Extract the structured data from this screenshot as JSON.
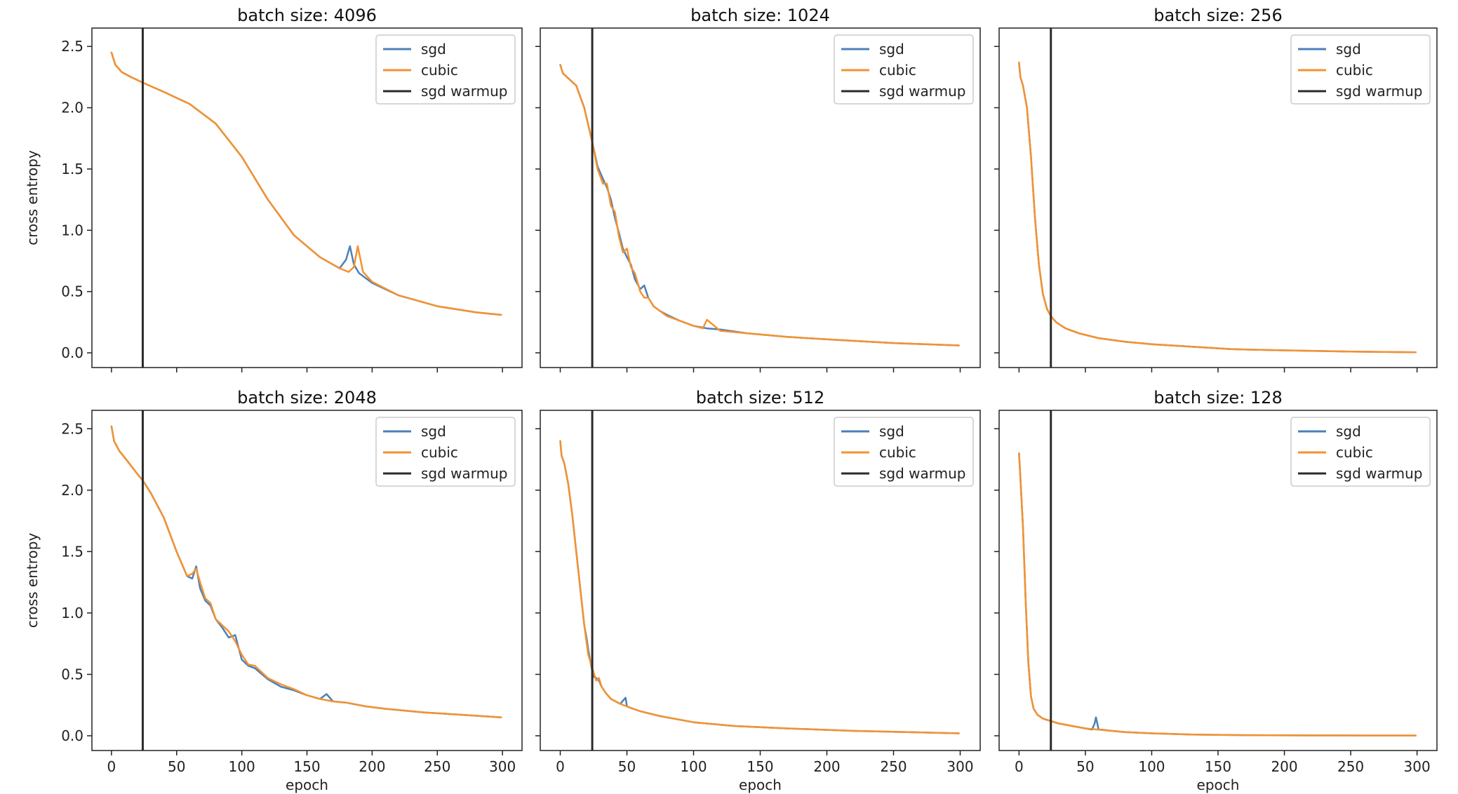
{
  "colors": {
    "sgd": "#4c80b8",
    "cubic": "#f5922f",
    "warmup": "#2b2b2b",
    "frame": "#222222"
  },
  "chart_data": [
    {
      "type": "line",
      "title": "batch size: 4096",
      "xlabel": "",
      "ylabel": "cross entropy",
      "xlim": [
        -15,
        315
      ],
      "ylim": [
        -0.12,
        2.65
      ],
      "xticks": [
        0,
        50,
        100,
        150,
        200,
        250,
        300
      ],
      "xtick_labels_shown": false,
      "yticks": [
        0.0,
        0.5,
        1.0,
        1.5,
        2.0,
        2.5
      ],
      "ytick_labels_shown": true,
      "warmup_epoch": 24,
      "legend": [
        "sgd",
        "cubic",
        "sgd warmup"
      ],
      "legend_position": "top-right",
      "series": [
        {
          "name": "sgd",
          "x": [
            0,
            3,
            8,
            15,
            25,
            40,
            60,
            80,
            100,
            120,
            140,
            160,
            175,
            180,
            183,
            186,
            190,
            200,
            220,
            250,
            280,
            299
          ],
          "y": [
            2.45,
            2.35,
            2.29,
            2.25,
            2.2,
            2.13,
            2.03,
            1.87,
            1.6,
            1.25,
            0.96,
            0.78,
            0.69,
            0.76,
            0.87,
            0.72,
            0.65,
            0.57,
            0.47,
            0.38,
            0.33,
            0.31
          ]
        },
        {
          "name": "cubic",
          "x": [
            0,
            3,
            8,
            15,
            25,
            40,
            60,
            80,
            100,
            120,
            140,
            160,
            175,
            182,
            186,
            189,
            193,
            200,
            220,
            250,
            280,
            299
          ],
          "y": [
            2.45,
            2.35,
            2.29,
            2.25,
            2.2,
            2.13,
            2.03,
            1.87,
            1.6,
            1.25,
            0.96,
            0.78,
            0.69,
            0.66,
            0.7,
            0.87,
            0.66,
            0.58,
            0.47,
            0.38,
            0.33,
            0.31
          ]
        }
      ]
    },
    {
      "type": "line",
      "title": "batch size: 1024",
      "xlabel": "",
      "ylabel": "",
      "xlim": [
        -15,
        315
      ],
      "ylim": [
        -0.12,
        2.65
      ],
      "xticks": [
        0,
        50,
        100,
        150,
        200,
        250,
        300
      ],
      "xtick_labels_shown": false,
      "yticks": [
        0.0,
        0.5,
        1.0,
        1.5,
        2.0,
        2.5
      ],
      "ytick_labels_shown": false,
      "warmup_epoch": 24,
      "legend": [
        "sgd",
        "cubic",
        "sgd warmup"
      ],
      "legend_position": "top-right",
      "series": [
        {
          "name": "sgd",
          "x": [
            0,
            2,
            6,
            12,
            18,
            24,
            28,
            32,
            35,
            38,
            41,
            44,
            47,
            50,
            53,
            56,
            60,
            63,
            66,
            70,
            75,
            80,
            90,
            100,
            110,
            120,
            140,
            170,
            200,
            250,
            299
          ],
          "y": [
            2.35,
            2.28,
            2.24,
            2.18,
            2.0,
            1.72,
            1.52,
            1.42,
            1.35,
            1.25,
            1.1,
            0.98,
            0.85,
            0.78,
            0.72,
            0.6,
            0.52,
            0.55,
            0.45,
            0.38,
            0.34,
            0.31,
            0.26,
            0.22,
            0.2,
            0.19,
            0.16,
            0.13,
            0.11,
            0.08,
            0.06
          ]
        },
        {
          "name": "cubic",
          "x": [
            0,
            2,
            6,
            12,
            18,
            24,
            28,
            32,
            35,
            38,
            41,
            44,
            47,
            50,
            53,
            56,
            60,
            63,
            66,
            70,
            75,
            80,
            90,
            100,
            107,
            110,
            120,
            140,
            170,
            200,
            250,
            299
          ],
          "y": [
            2.35,
            2.28,
            2.24,
            2.18,
            2.0,
            1.72,
            1.5,
            1.38,
            1.38,
            1.2,
            1.15,
            0.95,
            0.82,
            0.85,
            0.7,
            0.65,
            0.5,
            0.45,
            0.45,
            0.38,
            0.34,
            0.3,
            0.26,
            0.22,
            0.2,
            0.27,
            0.18,
            0.16,
            0.13,
            0.11,
            0.08,
            0.06
          ]
        }
      ]
    },
    {
      "type": "line",
      "title": "batch size: 256",
      "xlabel": "",
      "ylabel": "",
      "xlim": [
        -15,
        315
      ],
      "ylim": [
        -0.12,
        2.65
      ],
      "xticks": [
        0,
        50,
        100,
        150,
        200,
        250,
        300
      ],
      "xtick_labels_shown": false,
      "yticks": [
        0.0,
        0.5,
        1.0,
        1.5,
        2.0,
        2.5
      ],
      "ytick_labels_shown": false,
      "warmup_epoch": 24,
      "legend": [
        "sgd",
        "cubic",
        "sgd warmup"
      ],
      "legend_position": "top-right",
      "series": [
        {
          "name": "sgd",
          "x": [
            0,
            1,
            3,
            6,
            9,
            12,
            15,
            18,
            21,
            24,
            28,
            35,
            45,
            60,
            80,
            100,
            130,
            160,
            200,
            250,
            299
          ],
          "y": [
            2.36,
            2.25,
            2.18,
            2.0,
            1.6,
            1.1,
            0.72,
            0.48,
            0.36,
            0.3,
            0.25,
            0.2,
            0.16,
            0.12,
            0.09,
            0.07,
            0.05,
            0.03,
            0.02,
            0.01,
            0.005
          ]
        },
        {
          "name": "cubic",
          "x": [
            0,
            1,
            3,
            6,
            9,
            12,
            15,
            18,
            21,
            24,
            28,
            35,
            45,
            60,
            80,
            100,
            130,
            160,
            200,
            250,
            299
          ],
          "y": [
            2.37,
            2.25,
            2.18,
            2.0,
            1.6,
            1.1,
            0.72,
            0.48,
            0.36,
            0.3,
            0.25,
            0.2,
            0.16,
            0.12,
            0.09,
            0.07,
            0.05,
            0.03,
            0.02,
            0.01,
            0.005
          ]
        }
      ]
    },
    {
      "type": "line",
      "title": "batch size: 2048",
      "xlabel": "epoch",
      "ylabel": "cross entropy",
      "xlim": [
        -15,
        315
      ],
      "ylim": [
        -0.12,
        2.65
      ],
      "xticks": [
        0,
        50,
        100,
        150,
        200,
        250,
        300
      ],
      "xtick_labels_shown": true,
      "yticks": [
        0.0,
        0.5,
        1.0,
        1.5,
        2.0,
        2.5
      ],
      "ytick_labels_shown": true,
      "warmup_epoch": 24,
      "legend": [
        "sgd",
        "cubic",
        "sgd warmup"
      ],
      "legend_position": "top-right",
      "series": [
        {
          "name": "sgd",
          "x": [
            0,
            2,
            6,
            12,
            20,
            24,
            30,
            40,
            50,
            58,
            62,
            65,
            68,
            72,
            76,
            80,
            85,
            90,
            95,
            100,
            105,
            110,
            120,
            130,
            140,
            150,
            160,
            165,
            170,
            180,
            195,
            210,
            240,
            270,
            299
          ],
          "y": [
            2.52,
            2.4,
            2.32,
            2.24,
            2.13,
            2.08,
            1.98,
            1.78,
            1.5,
            1.3,
            1.28,
            1.38,
            1.2,
            1.1,
            1.06,
            0.95,
            0.88,
            0.8,
            0.82,
            0.62,
            0.57,
            0.55,
            0.46,
            0.4,
            0.37,
            0.33,
            0.3,
            0.34,
            0.28,
            0.27,
            0.24,
            0.22,
            0.19,
            0.17,
            0.15
          ]
        },
        {
          "name": "cubic",
          "x": [
            0,
            2,
            6,
            12,
            20,
            24,
            30,
            40,
            50,
            58,
            62,
            65,
            68,
            72,
            76,
            80,
            85,
            90,
            95,
            100,
            105,
            110,
            120,
            130,
            140,
            150,
            160,
            170,
            180,
            195,
            210,
            240,
            270,
            299
          ],
          "y": [
            2.52,
            2.4,
            2.32,
            2.24,
            2.13,
            2.08,
            1.98,
            1.78,
            1.5,
            1.3,
            1.32,
            1.36,
            1.25,
            1.12,
            1.08,
            0.95,
            0.9,
            0.85,
            0.77,
            0.66,
            0.58,
            0.57,
            0.47,
            0.42,
            0.38,
            0.33,
            0.3,
            0.28,
            0.27,
            0.24,
            0.22,
            0.19,
            0.17,
            0.15
          ]
        }
      ]
    },
    {
      "type": "line",
      "title": "batch size: 512",
      "xlabel": "epoch",
      "ylabel": "",
      "xlim": [
        -15,
        315
      ],
      "ylim": [
        -0.12,
        2.65
      ],
      "xticks": [
        0,
        50,
        100,
        150,
        200,
        250,
        300
      ],
      "xtick_labels_shown": true,
      "yticks": [
        0.0,
        0.5,
        1.0,
        1.5,
        2.0,
        2.5
      ],
      "ytick_labels_shown": false,
      "warmup_epoch": 24,
      "legend": [
        "sgd",
        "cubic",
        "sgd warmup"
      ],
      "legend_position": "top-right",
      "series": [
        {
          "name": "sgd",
          "x": [
            0,
            1,
            3,
            6,
            9,
            12,
            15,
            18,
            20,
            21,
            23,
            25,
            27,
            29,
            31,
            34,
            38,
            45,
            49,
            50,
            52,
            60,
            75,
            100,
            130,
            170,
            220,
            260,
            299
          ],
          "y": [
            2.4,
            2.28,
            2.22,
            2.05,
            1.8,
            1.5,
            1.2,
            0.9,
            0.78,
            0.7,
            0.58,
            0.48,
            0.47,
            0.45,
            0.4,
            0.35,
            0.3,
            0.26,
            0.31,
            0.24,
            0.23,
            0.2,
            0.16,
            0.11,
            0.08,
            0.06,
            0.04,
            0.03,
            0.02
          ]
        },
        {
          "name": "cubic",
          "x": [
            0,
            1,
            3,
            6,
            9,
            12,
            15,
            18,
            21,
            24,
            27,
            29,
            31,
            34,
            38,
            45,
            52,
            60,
            75,
            100,
            130,
            170,
            220,
            260,
            299
          ],
          "y": [
            2.4,
            2.28,
            2.22,
            2.05,
            1.8,
            1.5,
            1.2,
            0.9,
            0.66,
            0.55,
            0.45,
            0.47,
            0.4,
            0.35,
            0.3,
            0.26,
            0.23,
            0.2,
            0.16,
            0.11,
            0.08,
            0.06,
            0.04,
            0.03,
            0.02
          ]
        }
      ]
    },
    {
      "type": "line",
      "title": "batch size: 128",
      "xlabel": "epoch",
      "ylabel": "",
      "xlim": [
        -15,
        315
      ],
      "ylim": [
        -0.12,
        2.65
      ],
      "xticks": [
        0,
        50,
        100,
        150,
        200,
        250,
        300
      ],
      "xtick_labels_shown": true,
      "yticks": [
        0.0,
        0.5,
        1.0,
        1.5,
        2.0,
        2.5
      ],
      "ytick_labels_shown": false,
      "warmup_epoch": 24,
      "legend": [
        "sgd",
        "cubic",
        "sgd warmup"
      ],
      "legend_position": "top-right",
      "series": [
        {
          "name": "sgd",
          "x": [
            0,
            1,
            3,
            5,
            7,
            9,
            11,
            14,
            18,
            24,
            30,
            40,
            50,
            55,
            57,
            58,
            60,
            62,
            70,
            80,
            100,
            130,
            170,
            220,
            260,
            299
          ],
          "y": [
            2.3,
            2.1,
            1.7,
            1.1,
            0.6,
            0.32,
            0.22,
            0.17,
            0.14,
            0.12,
            0.1,
            0.08,
            0.06,
            0.05,
            0.1,
            0.15,
            0.05,
            0.05,
            0.04,
            0.03,
            0.02,
            0.01,
            0.005,
            0.003,
            0.002,
            0.002
          ]
        },
        {
          "name": "cubic",
          "x": [
            0,
            1,
            3,
            5,
            7,
            9,
            11,
            14,
            18,
            24,
            30,
            40,
            50,
            60,
            70,
            80,
            100,
            130,
            170,
            220,
            260,
            299
          ],
          "y": [
            2.3,
            2.1,
            1.7,
            1.1,
            0.6,
            0.32,
            0.22,
            0.17,
            0.14,
            0.12,
            0.1,
            0.08,
            0.06,
            0.05,
            0.04,
            0.03,
            0.02,
            0.01,
            0.005,
            0.003,
            0.002,
            0.002
          ]
        }
      ]
    }
  ]
}
